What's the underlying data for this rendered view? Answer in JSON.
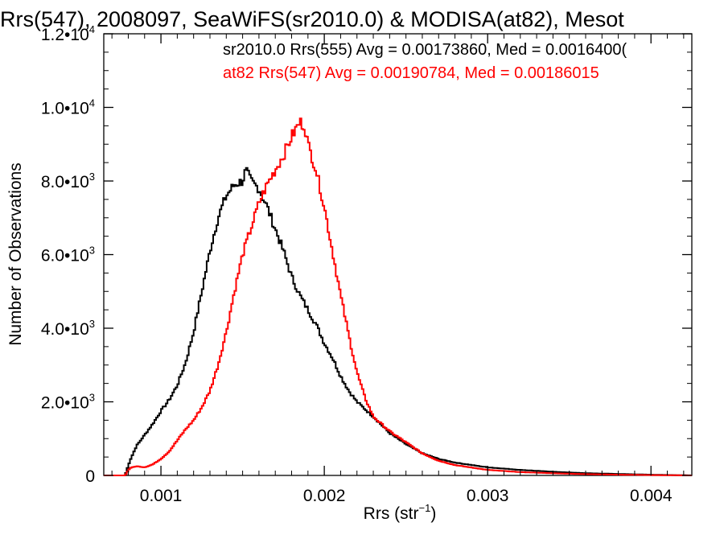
{
  "chart_data": {
    "type": "line",
    "title": "Rrs(547), 2008097, SeaWiFS(sr2010.0) & MODISA(at82), Mesot",
    "xlabel": {
      "base": "Rrs (str",
      "sup": "−1",
      "close": ")"
    },
    "ylabel": "Number of Observations",
    "xlim": [
      0.00065,
      0.00425
    ],
    "ylim": [
      0,
      12000
    ],
    "grid": false,
    "legend_position": "top-right",
    "x_ticks": [
      {
        "value": 0.001,
        "label": "0.001"
      },
      {
        "value": 0.002,
        "label": "0.002"
      },
      {
        "value": 0.003,
        "label": "0.003"
      },
      {
        "value": 0.004,
        "label": "0.004"
      }
    ],
    "y_ticks": [
      {
        "value": 0,
        "mant": "0",
        "exp": ""
      },
      {
        "value": 2000,
        "mant": "2.0•10",
        "exp": "3"
      },
      {
        "value": 4000,
        "mant": "4.0•10",
        "exp": "3"
      },
      {
        "value": 6000,
        "mant": "6.0•10",
        "exp": "3"
      },
      {
        "value": 8000,
        "mant": "8.0•10",
        "exp": "3"
      },
      {
        "value": 10000,
        "mant": "1.0•10",
        "exp": "4"
      },
      {
        "value": 12000,
        "mant": "1.2•10",
        "exp": "4"
      }
    ],
    "series": [
      {
        "label": "sr2010.0 Rrs(555) Avg = 0.00173860, Med = 0.0016400(",
        "color": "#000000",
        "x": [
          0.00065,
          0.00078,
          0.00081,
          0.00085,
          0.0009,
          0.00095,
          0.001,
          0.00105,
          0.0011,
          0.00115,
          0.0012,
          0.00125,
          0.0013,
          0.00135,
          0.0014,
          0.00145,
          0.0015,
          0.00152,
          0.00155,
          0.0016,
          0.00165,
          0.0017,
          0.00175,
          0.0018,
          0.00185,
          0.0019,
          0.00195,
          0.002,
          0.00205,
          0.0021,
          0.00215,
          0.0022,
          0.0023,
          0.0024,
          0.0025,
          0.0026,
          0.0027,
          0.0028,
          0.003,
          0.0032,
          0.0034,
          0.0036,
          0.0038,
          0.004,
          0.00425
        ],
        "y": [
          0,
          0,
          400,
          800,
          1100,
          1400,
          1750,
          2050,
          2450,
          3050,
          3900,
          5000,
          6100,
          7000,
          7600,
          7900,
          8000,
          8300,
          8000,
          7800,
          7300,
          6700,
          6100,
          5400,
          4900,
          4500,
          4100,
          3600,
          3200,
          2700,
          2300,
          2000,
          1600,
          1150,
          850,
          600,
          450,
          350,
          220,
          150,
          100,
          60,
          40,
          20,
          0
        ]
      },
      {
        "label": "at82 Rrs(547) Avg = 0.00190784, Med = 0.00186015",
        "color": "#ff0000",
        "x": [
          0.00065,
          0.00078,
          0.00081,
          0.00085,
          0.0009,
          0.00095,
          0.001,
          0.00105,
          0.0011,
          0.00115,
          0.0012,
          0.00125,
          0.0013,
          0.00135,
          0.0014,
          0.00145,
          0.0015,
          0.00155,
          0.0016,
          0.00165,
          0.0017,
          0.00175,
          0.0018,
          0.00185,
          0.00188,
          0.0019,
          0.00195,
          0.002,
          0.00205,
          0.0021,
          0.00215,
          0.0022,
          0.00225,
          0.0023,
          0.0024,
          0.0025,
          0.0026,
          0.0027,
          0.0028,
          0.003,
          0.0032,
          0.0034,
          0.0036,
          0.0038,
          0.004,
          0.00425
        ],
        "y": [
          0,
          0,
          200,
          250,
          220,
          300,
          450,
          650,
          950,
          1250,
          1500,
          1850,
          2300,
          3000,
          3900,
          5000,
          6000,
          6700,
          7400,
          7900,
          8300,
          8700,
          9200,
          9600,
          9500,
          9000,
          8300,
          7300,
          6100,
          4900,
          3800,
          2800,
          2100,
          1600,
          1200,
          900,
          600,
          400,
          280,
          150,
          90,
          60,
          35,
          20,
          10,
          0
        ]
      }
    ]
  }
}
